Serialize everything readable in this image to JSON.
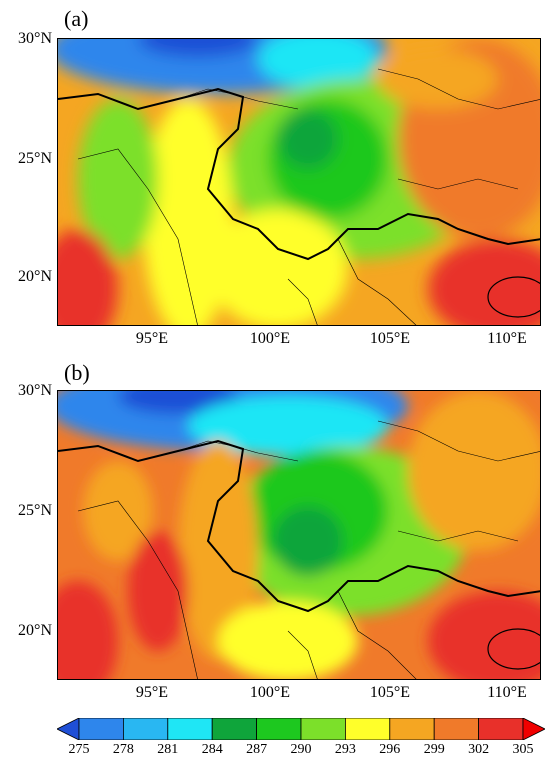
{
  "panels": [
    {
      "label": "(a)",
      "lat_labels": [
        "30°N",
        "25°N",
        "20°N"
      ],
      "lon_labels": [
        "95°E",
        "100°E",
        "105°E",
        "110°E"
      ]
    },
    {
      "label": "(b)",
      "lat_labels": [
        "30°N",
        "25°N",
        "20°N"
      ],
      "lon_labels": [
        "95°E",
        "100°E",
        "105°E",
        "110°E"
      ]
    }
  ],
  "colorbar": {
    "ticks": [
      "275",
      "278",
      "281",
      "284",
      "287",
      "290",
      "293",
      "296",
      "299",
      "302",
      "305"
    ],
    "colors": [
      "#1f4fd6",
      "#2e86ec",
      "#29b7f2",
      "#1fe6f5",
      "#0fa53b",
      "#1dc81f",
      "#7ce02a",
      "#ffff2a",
      "#f5a622",
      "#f07a2a",
      "#e8302a",
      "#f00000"
    ]
  },
  "map_extent": {
    "lon_min": 91,
    "lon_max": 111,
    "lat_min": 18,
    "lat_max": 30
  }
}
